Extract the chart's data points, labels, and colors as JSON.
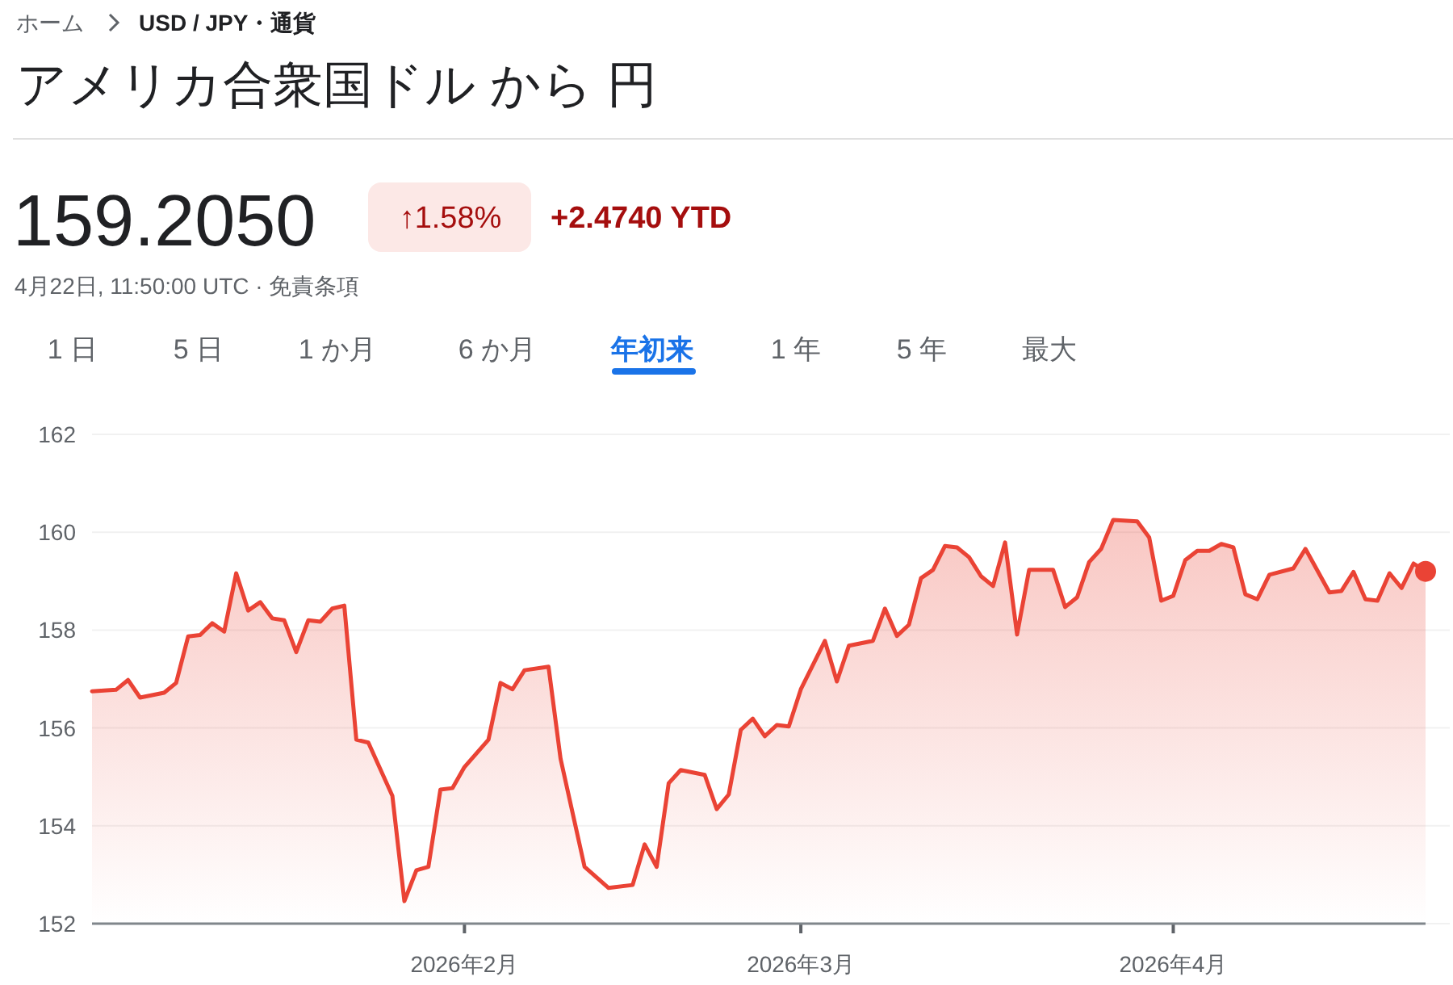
{
  "chart_data": {
    "type": "area",
    "title": "アメリカ合衆国ドル から 円",
    "annotations": [
      "ホーム",
      "USD / JPY・通貨",
      "159.2050",
      "↑1.58%",
      "+2.4740 YTD",
      "4月22日, 11:50:00 UTC · 免責条項",
      "1 日",
      "5 日",
      "1 か月",
      "6 か月",
      "年初来",
      "1 年",
      "5 年",
      "最大"
    ],
    "x": [
      "2026-01-01",
      "2026-01-03",
      "2026-01-04",
      "2026-01-05",
      "2026-01-07",
      "2026-01-08",
      "2026-01-09",
      "2026-01-10",
      "2026-01-11",
      "2026-01-12",
      "2026-01-13",
      "2026-01-14",
      "2026-01-15",
      "2026-01-16",
      "2026-01-17",
      "2026-01-18",
      "2026-01-19",
      "2026-01-20",
      "2026-01-21",
      "2026-01-22",
      "2026-01-23",
      "2026-01-24",
      "2026-01-26",
      "2026-01-27",
      "2026-01-28",
      "2026-01-29",
      "2026-01-30",
      "2026-01-31",
      "2026-02-01",
      "2026-02-03",
      "2026-02-04",
      "2026-02-05",
      "2026-02-06",
      "2026-02-08",
      "2026-02-09",
      "2026-02-11",
      "2026-02-13",
      "2026-02-15",
      "2026-02-16",
      "2026-02-17",
      "2026-02-18",
      "2026-02-19",
      "2026-02-21",
      "2026-02-22",
      "2026-02-23",
      "2026-02-24",
      "2026-02-25",
      "2026-02-26",
      "2026-02-27",
      "2026-02-28",
      "2026-03-01",
      "2026-03-03",
      "2026-03-04",
      "2026-03-05",
      "2026-03-07",
      "2026-03-08",
      "2026-03-09",
      "2026-03-10",
      "2026-03-11",
      "2026-03-12",
      "2026-03-13",
      "2026-03-14",
      "2026-03-15",
      "2026-03-16",
      "2026-03-17",
      "2026-03-18",
      "2026-03-19",
      "2026-03-20",
      "2026-03-22",
      "2026-03-23",
      "2026-03-24",
      "2026-03-25",
      "2026-03-26",
      "2026-03-27",
      "2026-03-29",
      "2026-03-30",
      "2026-03-31",
      "2026-04-01",
      "2026-04-02",
      "2026-04-03",
      "2026-04-04",
      "2026-04-05",
      "2026-04-06",
      "2026-04-07",
      "2026-04-08",
      "2026-04-09",
      "2026-04-11",
      "2026-04-12",
      "2026-04-14",
      "2026-04-15",
      "2026-04-16",
      "2026-04-17",
      "2026-04-18",
      "2026-04-19",
      "2026-04-20",
      "2026-04-21",
      "2026-04-22"
    ],
    "series": [
      {
        "color": "#ea4335",
        "values": [
          156.75,
          156.78,
          156.98,
          156.62,
          156.72,
          156.92,
          157.87,
          157.9,
          158.14,
          157.97,
          159.16,
          158.4,
          158.57,
          158.24,
          158.2,
          157.55,
          158.2,
          158.17,
          158.44,
          158.5,
          155.76,
          155.7,
          154.61,
          152.46,
          153.09,
          153.16,
          154.74,
          154.77,
          155.2,
          155.76,
          156.92,
          156.79,
          157.18,
          157.25,
          155.37,
          153.16,
          152.73,
          152.79,
          153.62,
          153.16,
          154.87,
          155.14,
          155.04,
          154.34,
          154.64,
          155.96,
          156.19,
          155.83,
          156.06,
          156.03,
          156.79,
          157.78,
          156.95,
          157.68,
          157.78,
          158.44,
          157.88,
          158.11,
          159.06,
          159.23,
          159.72,
          159.69,
          159.49,
          159.1,
          158.9,
          159.79,
          157.91,
          159.23,
          159.23,
          158.47,
          158.67,
          159.39,
          159.66,
          160.25,
          160.22,
          159.89,
          158.6,
          158.7,
          159.43,
          159.62,
          159.62,
          159.76,
          159.69,
          158.73,
          158.63,
          159.13,
          159.26,
          159.66,
          158.77,
          158.8,
          159.19,
          158.63,
          158.6,
          159.16,
          158.86,
          159.36,
          159.2
        ]
      }
    ],
    "xlim": [
      "2026-01-01",
      "2026-04-22"
    ],
    "xticks": [
      {
        "value": "2026-02-01",
        "label": "2026年2月"
      },
      {
        "value": "2026-03-01",
        "label": "2026年3月"
      },
      {
        "value": "2026-04-01",
        "label": "2026年4月"
      }
    ],
    "ylim": [
      152,
      162
    ],
    "yticks": [
      152,
      154,
      156,
      158,
      160,
      162
    ],
    "grid": "y"
  }
}
